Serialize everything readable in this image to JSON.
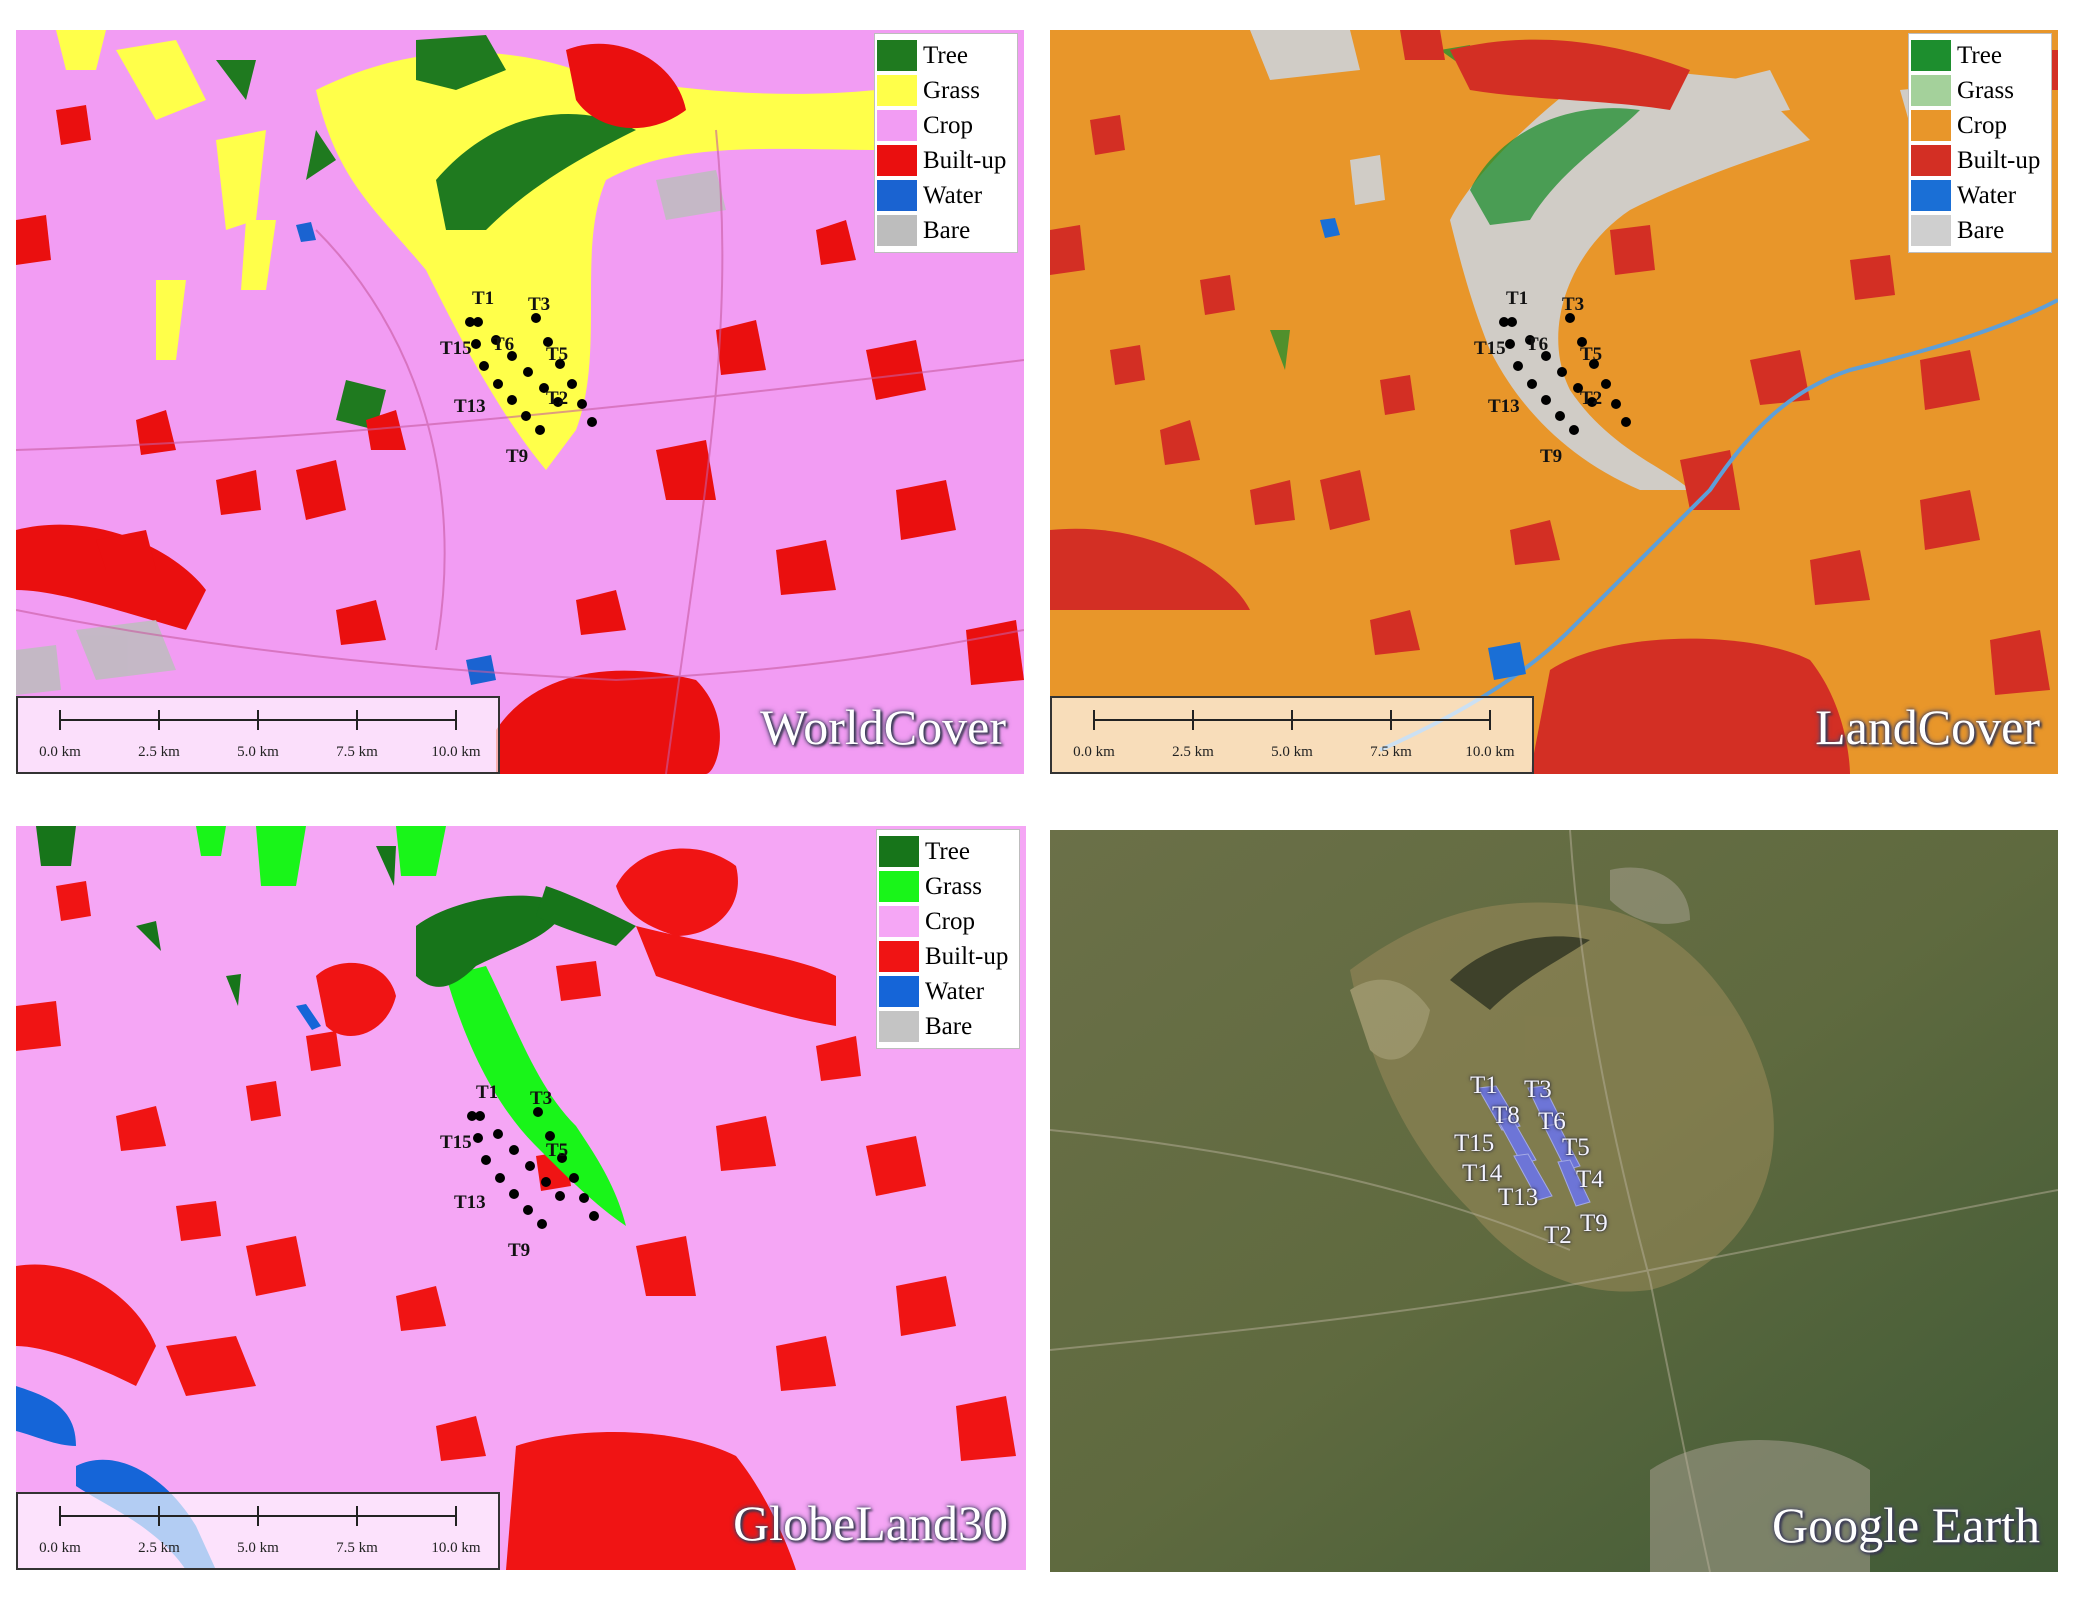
{
  "legend_items": [
    {
      "key": "tree",
      "label": "Tree"
    },
    {
      "key": "grass",
      "label": "Grass"
    },
    {
      "key": "crop",
      "label": "Crop"
    },
    {
      "key": "builtup",
      "label": "Built-up"
    },
    {
      "key": "water",
      "label": "Water"
    },
    {
      "key": "bare",
      "label": "Bare"
    }
  ],
  "scale_ticks": [
    "0.0 km",
    "2.5 km",
    "5.0 km",
    "7.5 km",
    "10.0 km"
  ],
  "panels": {
    "worldcover": {
      "title": "WorldCover",
      "colors": {
        "tree": "#1f7a1f",
        "grass": "#ffff4a",
        "crop": "#f29cf3",
        "builtup": "#ea0f0f",
        "water": "#1a63d1",
        "bare": "#bdbdbd"
      },
      "turbine_labels": [
        "T1",
        "T3",
        "T15",
        "T6",
        "T5",
        "T2",
        "T13",
        "T9"
      ]
    },
    "landcover": {
      "title": "LandCover",
      "colors": {
        "tree": "#1d8e2e",
        "grass": "#a4d19b",
        "crop": "#e8962a",
        "builtup": "#d32f24",
        "water": "#1a6fd6",
        "bare": "#cfcfcf"
      },
      "turbine_labels": [
        "T1",
        "T3",
        "T15",
        "T6",
        "T5",
        "T2",
        "T13",
        "T9"
      ]
    },
    "globeland30": {
      "title": "GlobeLand30",
      "colors": {
        "tree": "#17751a",
        "grass": "#19f519",
        "crop": "#f5a6f5",
        "builtup": "#f01414",
        "water": "#1565d8",
        "bare": "#c4c4c4"
      },
      "turbine_labels": [
        "T1",
        "T3",
        "T15",
        "T5",
        "T13",
        "T9"
      ]
    },
    "googleearth": {
      "title": "Google Earth",
      "turbine_labels": [
        "T1",
        "T3",
        "T8",
        "T6",
        "T15",
        "T5",
        "T14",
        "T4",
        "T13",
        "T9",
        "T2"
      ]
    }
  }
}
